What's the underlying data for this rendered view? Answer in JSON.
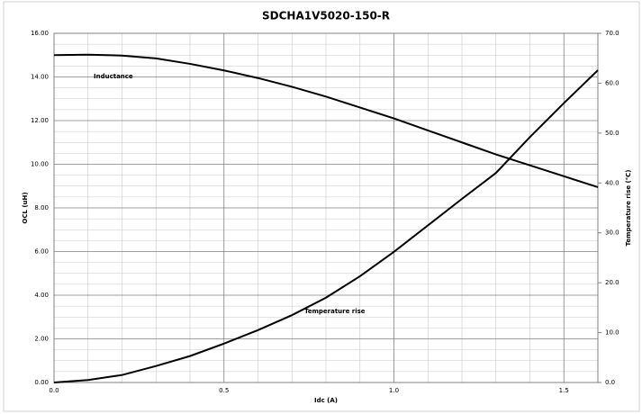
{
  "chart_data": {
    "type": "line",
    "title": "SDCHA1V5020-150-R",
    "xlabel": "Idc (A)",
    "ylabel": "OCL (uH)",
    "y2label": "Temperature rise (℃)",
    "x": [
      0,
      0.1,
      0.2,
      0.3,
      0.4,
      0.5,
      0.6,
      0.7,
      0.8,
      0.9,
      1.0,
      1.1,
      1.2,
      1.3,
      1.4,
      1.5,
      1.6
    ],
    "series": [
      {
        "name": "Inductance",
        "color": "#000000",
        "axis": "y",
        "values": [
          15.0,
          15.02,
          14.98,
          14.85,
          14.6,
          14.3,
          13.95,
          13.55,
          13.1,
          12.6,
          12.1,
          11.55,
          11.0,
          10.45,
          9.95,
          9.45,
          8.95
        ]
      },
      {
        "name": "Temperature rise",
        "color": "#000000",
        "axis": "y2",
        "values": [
          0,
          0.5,
          1.5,
          3.3,
          5.3,
          7.8,
          10.5,
          13.5,
          17.0,
          21.3,
          26.2,
          31.5,
          36.8,
          42.0,
          49.2,
          56.0,
          62.6
        ]
      }
    ],
    "xlim": [
      0,
      1.6
    ],
    "xticks": [
      {
        "value": 0,
        "label": "0.0"
      },
      0.5,
      {
        "value": 1,
        "label": "1.0"
      },
      1.5
    ],
    "ylim": [
      0,
      16
    ],
    "yticks": [
      {
        "value": 0,
        "label": "0.00"
      },
      {
        "value": 2,
        "label": "2.00"
      },
      {
        "value": 4,
        "label": "4.00"
      },
      {
        "value": 6,
        "label": "6.00"
      },
      {
        "value": 8,
        "label": "8.00"
      },
      {
        "value": 10,
        "label": "10.00"
      },
      {
        "value": 12,
        "label": "12.00"
      },
      {
        "value": 14,
        "label": "14.00"
      },
      {
        "value": 16,
        "label": "16.00"
      }
    ],
    "y2lim": [
      0,
      70
    ],
    "y2ticks": [
      {
        "value": 0,
        "label": "0.0"
      },
      {
        "value": 10,
        "label": "10.0"
      },
      {
        "value": 20,
        "label": "20.0"
      },
      {
        "value": 30,
        "label": "30.0"
      },
      {
        "value": 40,
        "label": "40.0"
      },
      {
        "value": 50,
        "label": "50.0"
      },
      {
        "value": 60,
        "label": "60.0"
      },
      {
        "value": 70,
        "label": "70.0"
      }
    ],
    "grid": true
  }
}
